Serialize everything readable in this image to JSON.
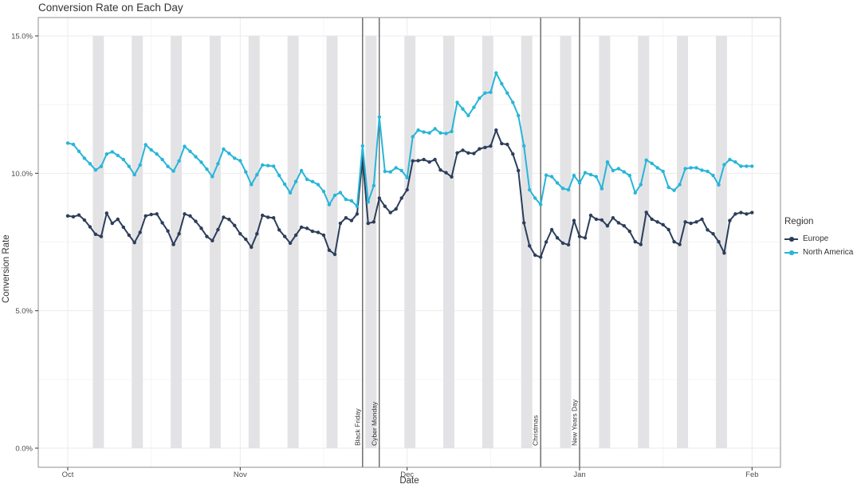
{
  "colors": {
    "background": "#FFFFFF",
    "panel_border": "#8F8F8F",
    "grid_major": "#EBEBEB",
    "grid_minor": "#F5F5F5",
    "weekend_band": "#E3E3E6",
    "event_line": "#3B3B3B",
    "text": "#333333",
    "tick_text": "#4D4D4D",
    "europe": "#2C3E5A",
    "north_america": "#28B5D8"
  },
  "chart_data": {
    "type": "line",
    "title": "Conversion Rate on Each Day",
    "xlabel": "Date",
    "ylabel": "Conversion Rate",
    "legend_title": "Region",
    "legend_position": "right",
    "grid": true,
    "x_unit": "day index, daily points from Oct through Feb",
    "x_range_days": [
      0,
      123
    ],
    "ylim": [
      0,
      15
    ],
    "y_format": "percent",
    "y_ticks": [
      {
        "value": 0,
        "label": "0.0%"
      },
      {
        "value": 5,
        "label": "5.0%"
      },
      {
        "value": 10,
        "label": "10.0%"
      },
      {
        "value": 15,
        "label": "15.0%"
      }
    ],
    "y_minor": [
      2.5,
      7.5,
      12.5
    ],
    "x_ticks": [
      {
        "day": 0,
        "label": "Oct"
      },
      {
        "day": 31,
        "label": "Nov"
      },
      {
        "day": 61,
        "label": "Dec"
      },
      {
        "day": 92,
        "label": "Jan"
      },
      {
        "day": 123,
        "label": "Feb"
      }
    ],
    "x_minor_days": [
      15,
      46,
      76,
      107
    ],
    "weekend_saturdays": [
      5,
      12,
      19,
      26,
      33,
      40,
      47,
      54,
      61,
      68,
      75,
      82,
      89,
      96,
      103,
      110,
      117
    ],
    "events": [
      {
        "label": "Black Friday",
        "day": 53
      },
      {
        "label": "Cyber Monday",
        "day": 56
      },
      {
        "label": "Christmas",
        "day": 85
      },
      {
        "label": "New Years Day",
        "day": 92
      }
    ],
    "series": [
      {
        "name": "Europe",
        "color": "#2C3E5A",
        "values": [
          8.45,
          8.42,
          8.48,
          8.3,
          8.05,
          7.78,
          7.7,
          8.55,
          8.18,
          8.33,
          8.04,
          7.75,
          7.48,
          7.85,
          8.45,
          8.5,
          8.52,
          8.2,
          7.9,
          7.41,
          7.8,
          8.52,
          8.45,
          8.25,
          8.0,
          7.7,
          7.55,
          7.95,
          8.4,
          8.32,
          8.1,
          7.8,
          7.6,
          7.31,
          7.8,
          8.47,
          8.4,
          8.38,
          7.94,
          7.7,
          7.46,
          7.75,
          8.04,
          8.0,
          7.89,
          7.85,
          7.75,
          7.2,
          7.05,
          8.18,
          8.38,
          8.28,
          8.52,
          10.55,
          8.18,
          8.23,
          9.1,
          8.8,
          8.57,
          8.7,
          9.1,
          9.4,
          10.45,
          10.46,
          10.5,
          10.41,
          10.5,
          10.12,
          10.02,
          9.87,
          10.74,
          10.84,
          10.74,
          10.72,
          10.89,
          10.94,
          10.99,
          11.57,
          11.08,
          11.05,
          10.7,
          10.1,
          8.2,
          7.36,
          7.02,
          6.95,
          7.5,
          7.95,
          7.65,
          7.46,
          7.4,
          8.28,
          7.7,
          7.65,
          8.47,
          8.33,
          8.3,
          8.09,
          8.38,
          8.2,
          8.09,
          7.89,
          7.51,
          7.41,
          8.58,
          8.33,
          8.23,
          8.13,
          7.95,
          7.51,
          7.41,
          8.23,
          8.18,
          8.23,
          8.33,
          7.94,
          7.8,
          7.51,
          7.1,
          8.28,
          8.52,
          8.57,
          8.52,
          8.57
        ]
      },
      {
        "name": "North America",
        "color": "#28B5D8",
        "values": [
          11.1,
          11.05,
          10.8,
          10.55,
          10.35,
          10.12,
          10.25,
          10.7,
          10.78,
          10.65,
          10.5,
          10.25,
          9.95,
          10.3,
          11.04,
          10.85,
          10.7,
          10.5,
          10.25,
          10.08,
          10.45,
          10.98,
          10.8,
          10.6,
          10.4,
          10.15,
          9.88,
          10.35,
          10.88,
          10.72,
          10.55,
          10.46,
          10.05,
          9.59,
          9.95,
          10.3,
          10.28,
          10.26,
          9.92,
          9.6,
          9.29,
          9.7,
          10.1,
          9.78,
          9.7,
          9.59,
          9.34,
          8.86,
          9.2,
          9.3,
          9.05,
          9.0,
          8.8,
          11.0,
          8.96,
          9.55,
          12.05,
          10.07,
          10.05,
          10.2,
          10.1,
          9.84,
          11.33,
          11.57,
          11.5,
          11.47,
          11.62,
          11.47,
          11.45,
          11.52,
          12.58,
          12.34,
          12.1,
          12.4,
          12.73,
          12.92,
          12.95,
          13.65,
          13.26,
          12.92,
          12.58,
          12.1,
          11.0,
          9.4,
          9.1,
          8.86,
          9.93,
          9.88,
          9.65,
          9.45,
          9.4,
          9.92,
          9.65,
          10.02,
          9.95,
          9.88,
          9.44,
          10.41,
          10.1,
          10.17,
          10.05,
          9.92,
          9.29,
          9.59,
          10.48,
          10.36,
          10.2,
          10.07,
          9.49,
          9.38,
          9.59,
          10.17,
          10.2,
          10.2,
          10.11,
          10.07,
          9.92,
          9.58,
          10.31,
          10.5,
          10.41,
          10.26,
          10.26,
          10.26
        ]
      }
    ]
  }
}
